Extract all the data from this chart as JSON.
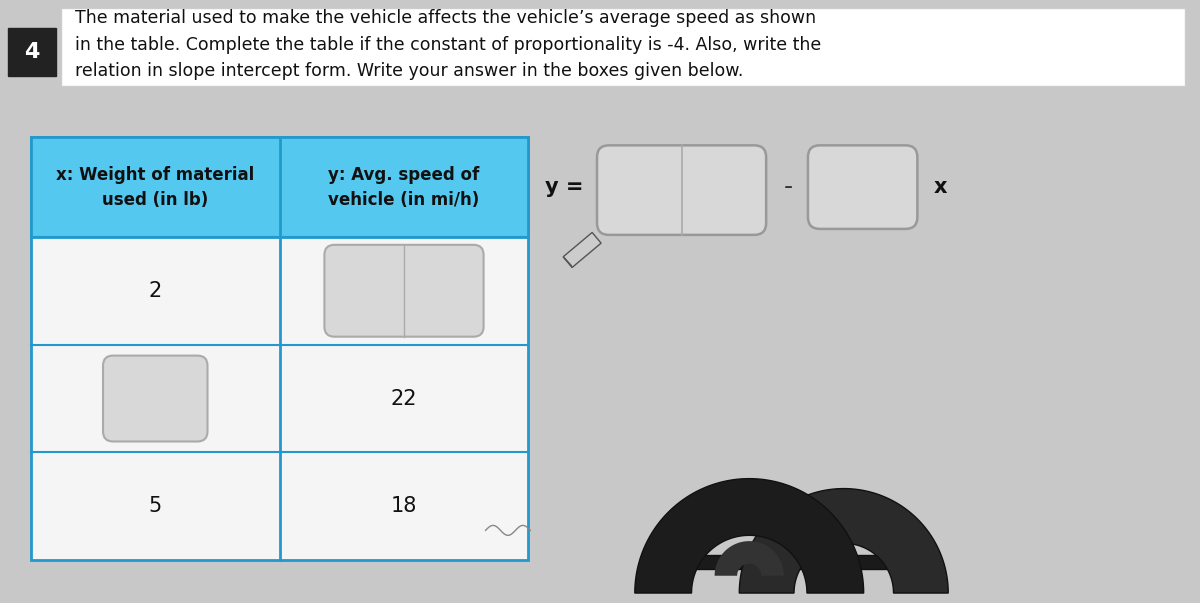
{
  "bg_color": "#c8c8c8",
  "title_box_color": "#ffffff",
  "title_text": "The material used to make the vehicle affects the vehicle’s average speed as shown\nin the table. Complete the table if the constant of proportionality is -4. Also, write the\nrelation in slope intercept form. Write your answer in the boxes given below.",
  "question_number": "4",
  "table_header_bg": "#55c8f0",
  "table_cell_bg": "#f5f5f5",
  "table_border_color": "#2299cc",
  "col1_header": "x: Weight of material\nused (in lb)",
  "col2_header": "y: Avg. speed of\nvehicle (in mi/h)",
  "rows": [
    {
      "x": "2",
      "y": "",
      "x_blank": false,
      "y_blank": true
    },
    {
      "x": "",
      "y": "22",
      "x_blank": true,
      "y_blank": false
    },
    {
      "x": "5",
      "y": "18",
      "x_blank": false,
      "y_blank": false
    }
  ],
  "equation_label": "y =",
  "equation_suffix": "x",
  "input_box_color": "#d8d8d8",
  "input_box_ec": "#aaaaaa"
}
